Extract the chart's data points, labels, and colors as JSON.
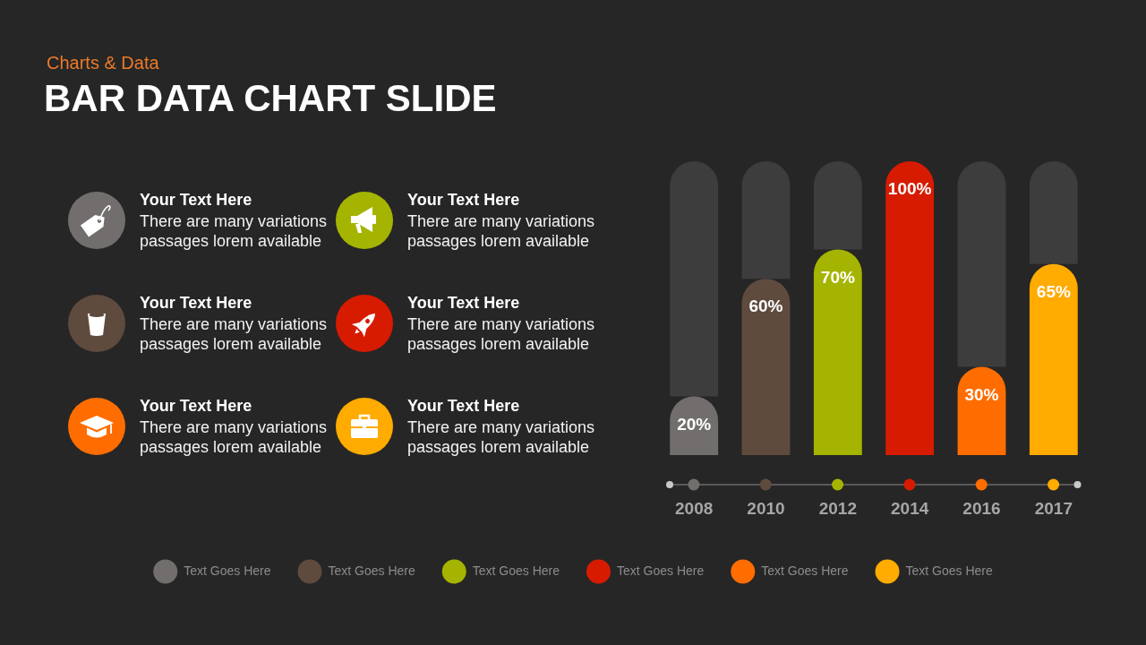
{
  "chart_data": [
    {
      "type": "other",
      "title": "BAR DATA CHART SLIDE",
      "subtitle": "Charts & Data",
      "colors": [
        "#736e6e",
        "#a5b400",
        "#5f4b3e",
        "#d71b00",
        "#ff6d00",
        "#ffab00"
      ],
      "annotations": [
        "Your Text Here",
        "There are many variations passages lorem available",
        "Your Text Here",
        "There are many variations passages lorem available",
        "Your Text Here",
        "There are many variations passages lorem available",
        "Your Text Here",
        "There are many variations passages lorem available",
        "Your Text Here",
        "There are many variations passages lorem available",
        "Your Text Here",
        "There are many variations passages lorem available"
      ]
    },
    {
      "type": "bar",
      "categories": [
        "2008",
        "2010",
        "2012",
        "2014",
        "2016",
        "2017"
      ],
      "stacked": true,
      "legend": "bottom",
      "tick_labels": "x",
      "series": [
        {
          "name": "Text Goes Here",
          "color": "#736e6e",
          "values": [
            20,
            null,
            null,
            null,
            null,
            null
          ],
          "value_labels": [
            "20%",
            null,
            null,
            null,
            null,
            null
          ]
        },
        {
          "name": "Text Goes Here",
          "color": "#5f4b3e",
          "values": [
            null,
            60,
            null,
            null,
            null,
            null
          ],
          "value_labels": [
            null,
            "60%",
            null,
            null,
            null,
            null
          ]
        },
        {
          "name": "Text Goes Here",
          "color": "#a5b400",
          "values": [
            null,
            null,
            70,
            null,
            null,
            null
          ],
          "value_labels": [
            null,
            null,
            "70%",
            null,
            null,
            null
          ]
        },
        {
          "name": "Text Goes Here",
          "color": "#d71b00",
          "values": [
            null,
            null,
            null,
            100,
            null,
            null
          ],
          "value_labels": [
            null,
            null,
            null,
            "100%",
            null,
            null
          ]
        },
        {
          "name": "Text Goes Here",
          "color": "#ff6d00",
          "values": [
            null,
            null,
            null,
            null,
            30,
            null
          ],
          "value_labels": [
            null,
            null,
            null,
            null,
            "30%",
            null
          ]
        },
        {
          "name": "Text Goes Here",
          "color": "#ffab00",
          "values": [
            null,
            null,
            null,
            null,
            null,
            65
          ],
          "value_labels": [
            null,
            null,
            null,
            null,
            null,
            "65%"
          ]
        },
        {
          "color": "#3d3d3d",
          "values": [
            80,
            40,
            30,
            0,
            70,
            35
          ]
        }
      ]
    }
  ]
}
